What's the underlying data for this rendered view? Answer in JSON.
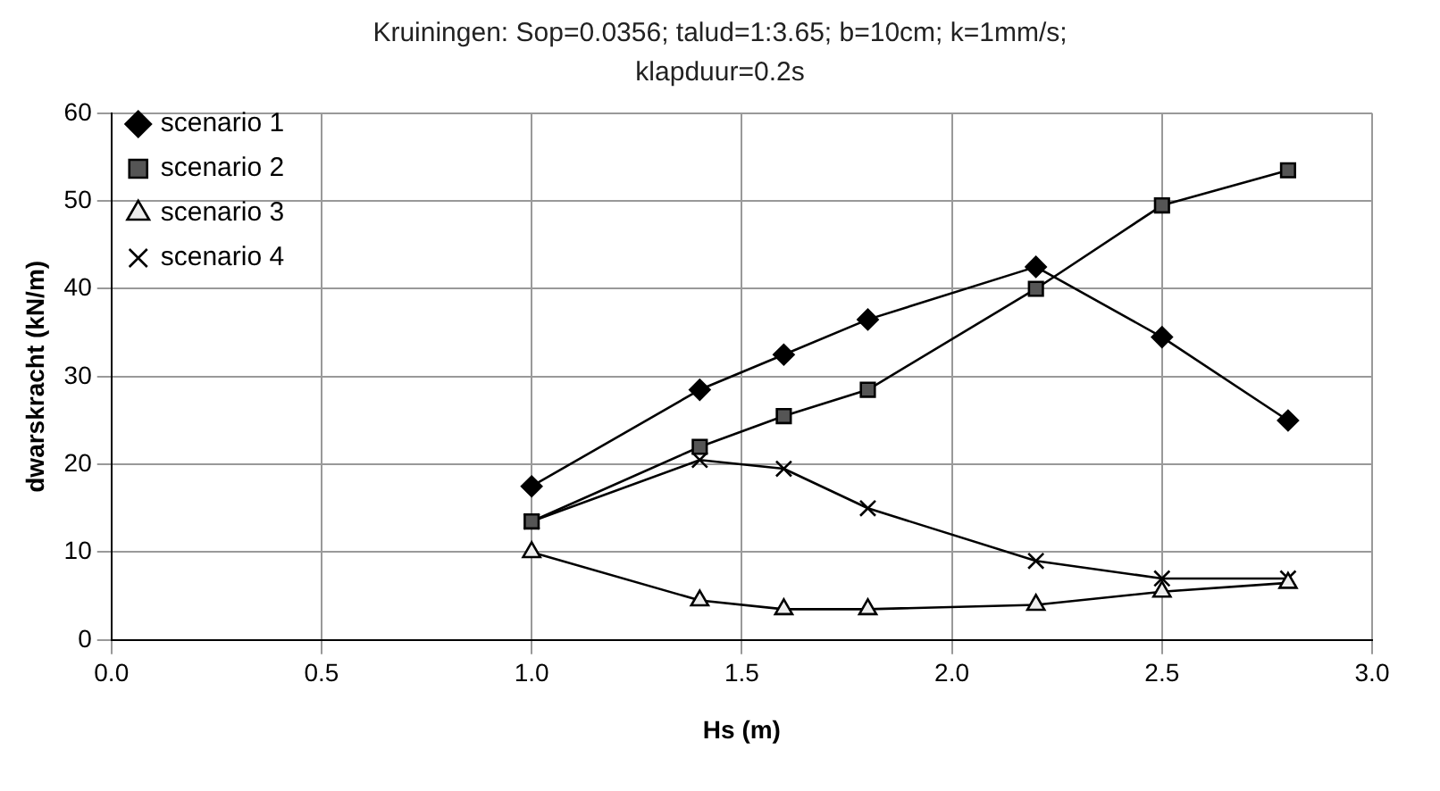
{
  "chart_data": {
    "type": "line",
    "title": "Kruiningen: Sop=0.0356; talud=1:3.65; b=10cm; k=1mm/s; klapduur=0.2s",
    "xlabel": "Hs (m)",
    "ylabel": "dwarskracht (kN/m)",
    "x": [
      1.0,
      1.4,
      1.6,
      1.8,
      2.2,
      2.5,
      2.8
    ],
    "xlim": [
      0,
      3
    ],
    "xticks": [
      {
        "value": 0,
        "label": "0.0"
      },
      {
        "value": 0.5,
        "label": "0.5"
      },
      {
        "value": 1,
        "label": "1.0"
      },
      {
        "value": 1.5,
        "label": "1.5"
      },
      {
        "value": 2,
        "label": "2.0"
      },
      {
        "value": 2.5,
        "label": "2.5"
      },
      {
        "value": 3,
        "label": "3.0"
      }
    ],
    "ylim": [
      0,
      60
    ],
    "yticks": [
      0,
      10,
      20,
      30,
      40,
      50,
      60
    ],
    "grid": true,
    "legend": "top left",
    "series": [
      {
        "name": "scenario 1",
        "color": "#000000",
        "marker": "diamond",
        "values": [
          17.5,
          28.5,
          32.5,
          36.5,
          42.5,
          34.5,
          25
        ]
      },
      {
        "name": "scenario 2",
        "color": "#555555",
        "marker": "square",
        "values": [
          13.5,
          22,
          25.5,
          28.5,
          40,
          49.5,
          53.5
        ]
      },
      {
        "name": "scenario 3",
        "color": "#eeeeee",
        "marker": "triangle",
        "values": [
          10,
          4.5,
          3.5,
          3.5,
          4,
          5.5,
          6.5
        ]
      },
      {
        "name": "scenario 4",
        "color": "#000000",
        "marker": "cross",
        "values": [
          13.5,
          20.5,
          19.5,
          15,
          9,
          7,
          7
        ]
      }
    ]
  }
}
